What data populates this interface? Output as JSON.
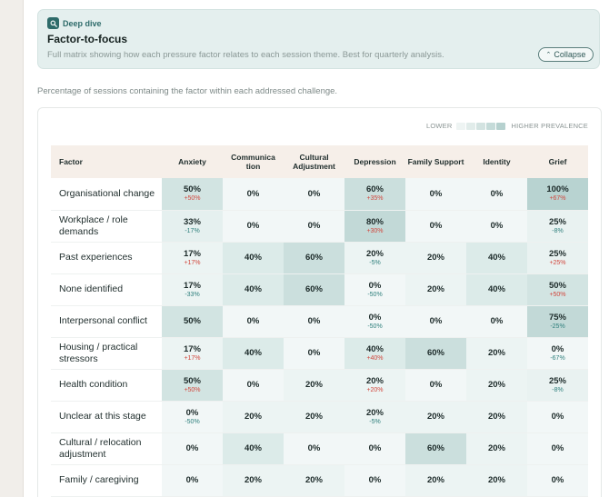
{
  "deep_dive": {
    "badge": "Deep dive",
    "title": "Factor-to-focus",
    "description": "Full matrix showing how each pressure factor relates to each session theme. Best for quarterly analysis.",
    "collapse_label": "Collapse"
  },
  "caption": "Percentage of sessions containing the factor within each addressed challenge.",
  "legend": {
    "low_label": "LOWER",
    "high_label": "HIGHER PREVALENCE",
    "swatches": [
      "#eef4f3",
      "#e1ecea",
      "#d3e3e1",
      "#c5dbd9",
      "#b6d1cf"
    ]
  },
  "colors": {
    "accent": "#2e6b6a",
    "increase": "#d1473d",
    "decrease": "#2e7f7c",
    "header_bg": "#f6efe9"
  },
  "matrix": {
    "factor_header": "Factor",
    "columns": [
      "Anxiety",
      "Communica tion",
      "Cultural Adjustment",
      "Depression",
      "Family Support",
      "Identity",
      "Grief"
    ],
    "rows": [
      {
        "factor": "Organisational change",
        "cells": [
          {
            "value": "50%",
            "delta": "+50%"
          },
          {
            "value": "0%",
            "delta": ""
          },
          {
            "value": "0%",
            "delta": ""
          },
          {
            "value": "60%",
            "delta": "+35%"
          },
          {
            "value": "0%",
            "delta": ""
          },
          {
            "value": "0%",
            "delta": ""
          },
          {
            "value": "100%",
            "delta": "+67%"
          }
        ]
      },
      {
        "factor": "Workplace / role demands",
        "cells": [
          {
            "value": "33%",
            "delta": "-17%"
          },
          {
            "value": "0%",
            "delta": ""
          },
          {
            "value": "0%",
            "delta": ""
          },
          {
            "value": "80%",
            "delta": "+30%"
          },
          {
            "value": "0%",
            "delta": ""
          },
          {
            "value": "0%",
            "delta": ""
          },
          {
            "value": "25%",
            "delta": "-8%"
          }
        ]
      },
      {
        "factor": "Past experiences",
        "cells": [
          {
            "value": "17%",
            "delta": "+17%"
          },
          {
            "value": "40%",
            "delta": ""
          },
          {
            "value": "60%",
            "delta": ""
          },
          {
            "value": "20%",
            "delta": "-5%"
          },
          {
            "value": "20%",
            "delta": ""
          },
          {
            "value": "40%",
            "delta": ""
          },
          {
            "value": "25%",
            "delta": "+25%"
          }
        ]
      },
      {
        "factor": "None identified",
        "cells": [
          {
            "value": "17%",
            "delta": "-33%"
          },
          {
            "value": "40%",
            "delta": ""
          },
          {
            "value": "60%",
            "delta": ""
          },
          {
            "value": "0%",
            "delta": "-50%"
          },
          {
            "value": "20%",
            "delta": ""
          },
          {
            "value": "40%",
            "delta": ""
          },
          {
            "value": "50%",
            "delta": "+50%"
          }
        ]
      },
      {
        "factor": "Interpersonal conflict",
        "cells": [
          {
            "value": "50%",
            "delta": ""
          },
          {
            "value": "0%",
            "delta": ""
          },
          {
            "value": "0%",
            "delta": ""
          },
          {
            "value": "0%",
            "delta": "-50%"
          },
          {
            "value": "0%",
            "delta": ""
          },
          {
            "value": "0%",
            "delta": ""
          },
          {
            "value": "75%",
            "delta": "-25%"
          }
        ]
      },
      {
        "factor": "Housing / practical stressors",
        "cells": [
          {
            "value": "17%",
            "delta": "+17%"
          },
          {
            "value": "40%",
            "delta": ""
          },
          {
            "value": "0%",
            "delta": ""
          },
          {
            "value": "40%",
            "delta": "+40%"
          },
          {
            "value": "60%",
            "delta": ""
          },
          {
            "value": "20%",
            "delta": ""
          },
          {
            "value": "0%",
            "delta": "-67%"
          }
        ]
      },
      {
        "factor": "Health condition",
        "cells": [
          {
            "value": "50%",
            "delta": "+50%"
          },
          {
            "value": "0%",
            "delta": ""
          },
          {
            "value": "20%",
            "delta": ""
          },
          {
            "value": "20%",
            "delta": "+20%"
          },
          {
            "value": "0%",
            "delta": ""
          },
          {
            "value": "20%",
            "delta": ""
          },
          {
            "value": "25%",
            "delta": "-8%"
          }
        ]
      },
      {
        "factor": "Unclear at this stage",
        "cells": [
          {
            "value": "0%",
            "delta": "-50%"
          },
          {
            "value": "20%",
            "delta": ""
          },
          {
            "value": "20%",
            "delta": ""
          },
          {
            "value": "20%",
            "delta": "-5%"
          },
          {
            "value": "20%",
            "delta": ""
          },
          {
            "value": "20%",
            "delta": ""
          },
          {
            "value": "0%",
            "delta": ""
          }
        ]
      },
      {
        "factor": "Cultural / relocation adjustment",
        "cells": [
          {
            "value": "0%",
            "delta": ""
          },
          {
            "value": "40%",
            "delta": ""
          },
          {
            "value": "0%",
            "delta": ""
          },
          {
            "value": "0%",
            "delta": ""
          },
          {
            "value": "60%",
            "delta": ""
          },
          {
            "value": "20%",
            "delta": ""
          },
          {
            "value": "0%",
            "delta": ""
          }
        ]
      },
      {
        "factor": "Family / caregiving",
        "cells": [
          {
            "value": "0%",
            "delta": ""
          },
          {
            "value": "20%",
            "delta": ""
          },
          {
            "value": "20%",
            "delta": ""
          },
          {
            "value": "0%",
            "delta": ""
          },
          {
            "value": "20%",
            "delta": ""
          },
          {
            "value": "20%",
            "delta": ""
          },
          {
            "value": "0%",
            "delta": ""
          }
        ]
      }
    ]
  }
}
